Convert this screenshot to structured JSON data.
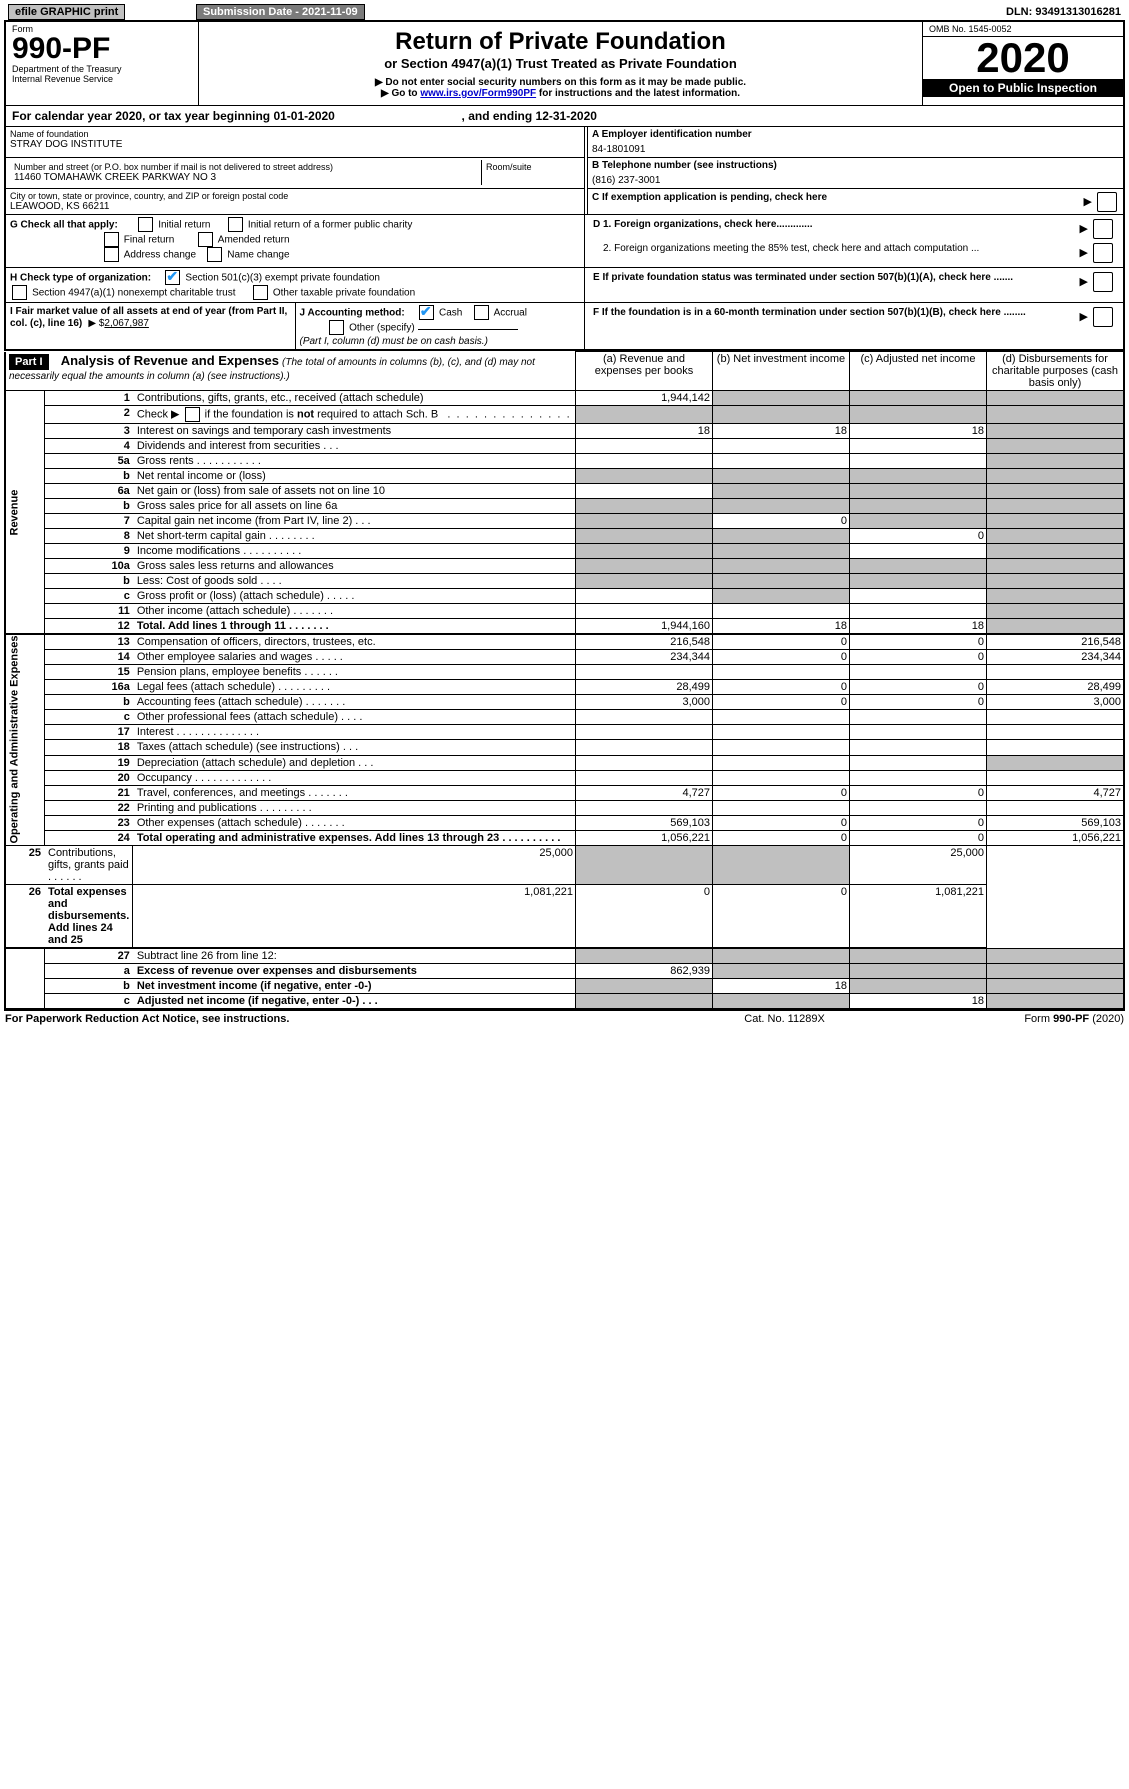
{
  "header": {
    "efile_btn": "efile GRAPHIC print",
    "submission_btn": "Submission Date - 2021-11-09",
    "dln_label": "DLN: 93491313016281"
  },
  "form_header": {
    "form_label": "Form",
    "form_num": "990-PF",
    "dept1": "Department of the Treasury",
    "dept2": "Internal Revenue Service",
    "title": "Return of Private Foundation",
    "subtitle": "or Section 4947(a)(1) Trust Treated as Private Foundation",
    "note1": "▶ Do not enter social security numbers on this form as it may be made public.",
    "note2_pre": "▶ Go to ",
    "note2_link": "www.irs.gov/Form990PF",
    "note2_post": " for instructions and the latest information.",
    "omb": "OMB No. 1545-0052",
    "year": "2020",
    "open_public": "Open to Public Inspection"
  },
  "cal_year": {
    "text_pre": "For calendar year 2020, or tax year beginning ",
    "begin": "01-01-2020",
    "mid": " , and ending ",
    "end": "12-31-2020"
  },
  "entity": {
    "name_label": "Name of foundation",
    "name": "STRAY DOG INSTITUTE",
    "addr_label": "Number and street (or P.O. box number if mail is not delivered to street address)",
    "addr": "11460 TOMAHAWK CREEK PARKWAY NO 3",
    "room_label": "Room/suite",
    "city_label": "City or town, state or province, country, and ZIP or foreign postal code",
    "city": "LEAWOOD, KS  66211",
    "ein_label": "A Employer identification number",
    "ein": "84-1801091",
    "phone_label": "B Telephone number (see instructions)",
    "phone": "(816) 237-3001",
    "c_label": "C If exemption application is pending, check here"
  },
  "checks": {
    "g_label": "G Check all that apply:",
    "g1": "Initial return",
    "g2": "Initial return of a former public charity",
    "g3": "Final return",
    "g4": "Amended return",
    "g5": "Address change",
    "g6": "Name change",
    "h_label": "H Check type of organization:",
    "h1": "Section 501(c)(3) exempt private foundation",
    "h2": "Section 4947(a)(1) nonexempt charitable trust",
    "h3": "Other taxable private foundation",
    "i_label": "I Fair market value of all assets at end of year (from Part II, col. (c), line 16)",
    "i_val_pre": "▶ $",
    "i_val": "2,067,987",
    "j_label": "J Accounting method:",
    "j1": "Cash",
    "j2": "Accrual",
    "j3": "Other (specify)",
    "j_note": "(Part I, column (d) must be on cash basis.)",
    "d1": "D 1. Foreign organizations, check here.............",
    "d2": "2. Foreign organizations meeting the 85% test, check here and attach computation ...",
    "e_label": "E  If private foundation status was terminated under section 507(b)(1)(A), check here .......",
    "f_label": "F  If the foundation is in a 60-month termination under section 507(b)(1)(B), check here ........"
  },
  "part1": {
    "label": "Part I",
    "title": "Analysis of Revenue and Expenses",
    "title_note": "(The total of amounts in columns (b), (c), and (d) may not necessarily equal the amounts in column (a) (see instructions).)",
    "col_a": "(a)   Revenue and expenses per books",
    "col_b": "(b)  Net investment income",
    "col_c": "(c)  Adjusted net income",
    "col_d": "(d)  Disbursements for charitable purposes (cash basis only)"
  },
  "sections": {
    "revenue": "Revenue",
    "opex": "Operating and Administrative Expenses"
  },
  "rows": [
    {
      "n": "1",
      "label": "Contributions, gifts, grants, etc., received (attach schedule)",
      "a": "1,944,142",
      "b": "",
      "c": "",
      "d": "",
      "shade_b": true,
      "shade_c": true,
      "shade_d": true
    },
    {
      "n": "2",
      "label": "Check ▶ ☐ if the foundation is not required to attach Sch. B",
      "a": "",
      "b": "",
      "c": "",
      "d": "",
      "shade_a": true,
      "shade_b": true,
      "shade_c": true,
      "shade_d": true,
      "html_label": true
    },
    {
      "n": "3",
      "label": "Interest on savings and temporary cash investments",
      "a": "18",
      "b": "18",
      "c": "18",
      "d": "",
      "shade_d": true
    },
    {
      "n": "4",
      "label": "Dividends and interest from securities    .   .   .",
      "a": "",
      "b": "",
      "c": "",
      "d": "",
      "shade_d": true
    },
    {
      "n": "5a",
      "label": "Gross rents     .   .   .   .   .   .   .   .   .   .   .",
      "a": "",
      "b": "",
      "c": "",
      "d": "",
      "shade_d": true
    },
    {
      "n": "b",
      "label": "Net rental income or (loss)",
      "a": "",
      "b": "",
      "c": "",
      "d": "",
      "shade_a": true,
      "shade_b": true,
      "shade_c": true,
      "shade_d": true
    },
    {
      "n": "6a",
      "label": "Net gain or (loss) from sale of assets not on line 10",
      "a": "",
      "b": "",
      "c": "",
      "d": "",
      "shade_b": true,
      "shade_c": true,
      "shade_d": true
    },
    {
      "n": "b",
      "label": "Gross sales price for all assets on line 6a",
      "a": "",
      "b": "",
      "c": "",
      "d": "",
      "shade_a": true,
      "shade_b": true,
      "shade_c": true,
      "shade_d": true
    },
    {
      "n": "7",
      "label": "Capital gain net income (from Part IV, line 2)    .   .   .",
      "a": "",
      "b": "0",
      "c": "",
      "d": "",
      "shade_a": true,
      "shade_c": true,
      "shade_d": true
    },
    {
      "n": "8",
      "label": "Net short-term capital gain   .   .   .   .   .   .   .   .",
      "a": "",
      "b": "",
      "c": "0",
      "d": "",
      "shade_a": true,
      "shade_b": true,
      "shade_d": true
    },
    {
      "n": "9",
      "label": "Income modifications  .   .   .   .   .   .   .   .   .   .",
      "a": "",
      "b": "",
      "c": "",
      "d": "",
      "shade_a": true,
      "shade_b": true,
      "shade_d": true
    },
    {
      "n": "10a",
      "label": "Gross sales less returns and allowances",
      "a": "",
      "b": "",
      "c": "",
      "d": "",
      "shade_a": true,
      "shade_b": true,
      "shade_c": true,
      "shade_d": true
    },
    {
      "n": "b",
      "label": "Less: Cost of goods sold     .   .   .   .",
      "a": "",
      "b": "",
      "c": "",
      "d": "",
      "shade_a": true,
      "shade_b": true,
      "shade_c": true,
      "shade_d": true
    },
    {
      "n": "c",
      "label": "Gross profit or (loss) (attach schedule)    .   .   .   .   .",
      "a": "",
      "b": "",
      "c": "",
      "d": "",
      "shade_b": true,
      "shade_d": true
    },
    {
      "n": "11",
      "label": "Other income (attach schedule)    .   .   .   .   .   .   .",
      "a": "",
      "b": "",
      "c": "",
      "d": "",
      "shade_d": true
    },
    {
      "n": "12",
      "label": "Total. Add lines 1 through 11    .   .   .   .   .   .   .",
      "a": "1,944,160",
      "b": "18",
      "c": "18",
      "d": "",
      "bold": true,
      "shade_d": true
    },
    {
      "n": "13",
      "label": "Compensation of officers, directors, trustees, etc.",
      "a": "216,548",
      "b": "0",
      "c": "0",
      "d": "216,548",
      "section": "opex"
    },
    {
      "n": "14",
      "label": "Other employee salaries and wages    .   .   .   .   .",
      "a": "234,344",
      "b": "0",
      "c": "0",
      "d": "234,344"
    },
    {
      "n": "15",
      "label": "Pension plans, employee benefits   .   .   .   .   .   .",
      "a": "",
      "b": "",
      "c": "",
      "d": ""
    },
    {
      "n": "16a",
      "label": "Legal fees (attach schedule)  .   .   .   .   .   .   .   .   .",
      "a": "28,499",
      "b": "0",
      "c": "0",
      "d": "28,499"
    },
    {
      "n": "b",
      "label": "Accounting fees (attach schedule)  .   .   .   .   .   .   .",
      "a": "3,000",
      "b": "0",
      "c": "0",
      "d": "3,000"
    },
    {
      "n": "c",
      "label": "Other professional fees (attach schedule)    .   .   .   .",
      "a": "",
      "b": "",
      "c": "",
      "d": ""
    },
    {
      "n": "17",
      "label": "Interest   .   .   .   .   .   .   .   .   .   .   .   .   .   .",
      "a": "",
      "b": "",
      "c": "",
      "d": ""
    },
    {
      "n": "18",
      "label": "Taxes (attach schedule) (see instructions)    .   .   .",
      "a": "",
      "b": "",
      "c": "",
      "d": ""
    },
    {
      "n": "19",
      "label": "Depreciation (attach schedule) and depletion    .   .   .",
      "a": "",
      "b": "",
      "c": "",
      "d": "",
      "shade_d": true
    },
    {
      "n": "20",
      "label": "Occupancy  .   .   .   .   .   .   .   .   .   .   .   .   .",
      "a": "",
      "b": "",
      "c": "",
      "d": ""
    },
    {
      "n": "21",
      "label": "Travel, conferences, and meetings  .   .   .   .   .   .   .",
      "a": "4,727",
      "b": "0",
      "c": "0",
      "d": "4,727"
    },
    {
      "n": "22",
      "label": "Printing and publications  .   .   .   .   .   .   .   .   .",
      "a": "",
      "b": "",
      "c": "",
      "d": ""
    },
    {
      "n": "23",
      "label": "Other expenses (attach schedule)   .   .   .   .   .   .   .",
      "a": "569,103",
      "b": "0",
      "c": "0",
      "d": "569,103"
    },
    {
      "n": "24",
      "label": "Total operating and administrative expenses. Add lines 13 through 23   .   .   .   .   .   .   .   .   .   .",
      "a": "1,056,221",
      "b": "0",
      "c": "0",
      "d": "1,056,221",
      "bold": true
    },
    {
      "n": "25",
      "label": "Contributions, gifts, grants paid      .   .   .   .   .   .",
      "a": "25,000",
      "b": "",
      "c": "",
      "d": "25,000",
      "shade_b": true,
      "shade_c": true
    },
    {
      "n": "26",
      "label": "Total expenses and disbursements. Add lines 24 and 25",
      "a": "1,081,221",
      "b": "0",
      "c": "0",
      "d": "1,081,221",
      "bold": true
    },
    {
      "n": "27",
      "label": "Subtract line 26 from line 12:",
      "a": "",
      "b": "",
      "c": "",
      "d": "",
      "shade_a": true,
      "shade_b": true,
      "shade_c": true,
      "shade_d": true,
      "section": "end"
    },
    {
      "n": "a",
      "label": "Excess of revenue over expenses and disbursements",
      "a": "862,939",
      "b": "",
      "c": "",
      "d": "",
      "bold": true,
      "shade_b": true,
      "shade_c": true,
      "shade_d": true
    },
    {
      "n": "b",
      "label": "Net investment income (if negative, enter -0-)",
      "a": "",
      "b": "18",
      "c": "",
      "d": "",
      "bold": true,
      "shade_a": true,
      "shade_c": true,
      "shade_d": true
    },
    {
      "n": "c",
      "label": "Adjusted net income (if negative, enter -0-)   .   .   .",
      "a": "",
      "b": "",
      "c": "18",
      "d": "",
      "bold": true,
      "shade_a": true,
      "shade_b": true,
      "shade_d": true
    }
  ],
  "footer": {
    "left": "For Paperwork Reduction Act Notice, see instructions.",
    "mid": "Cat. No. 11289X",
    "right": "Form 990-PF (2020)"
  },
  "colors": {
    "shade": "#c0c0c0",
    "link": "#0000cc",
    "check": "#2196f3"
  }
}
